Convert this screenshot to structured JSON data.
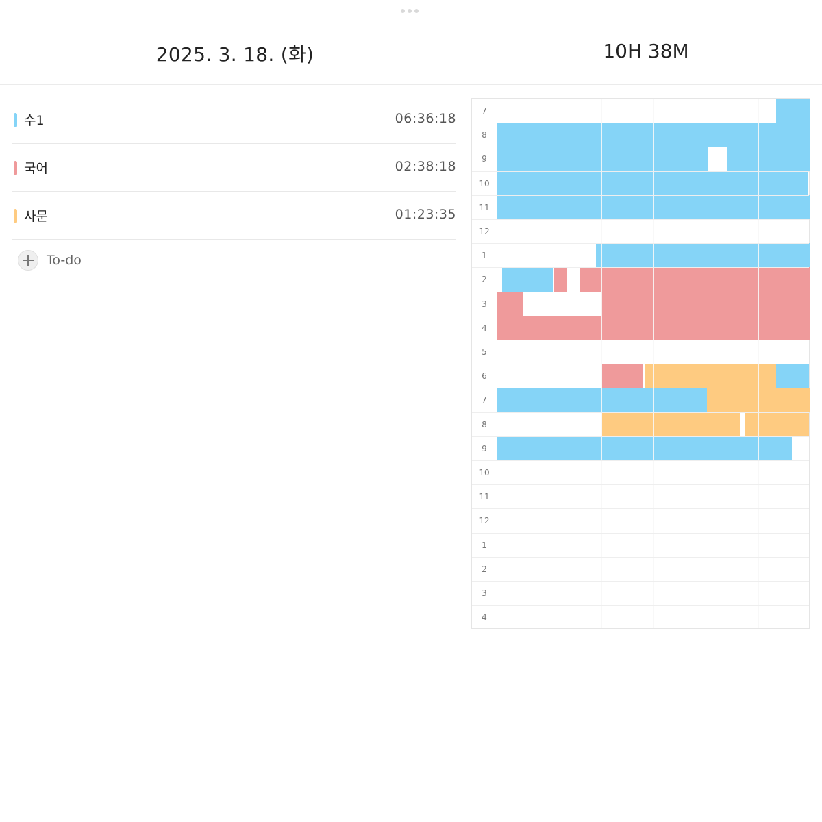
{
  "header": {
    "date": "2025. 3. 18. (화)",
    "total_time": "10H 38M"
  },
  "subjects": [
    {
      "name": "수1",
      "time": "06:36:18",
      "color": "#85d4f7"
    },
    {
      "name": "국어",
      "time": "02:38:18",
      "color": "#ef9a9b"
    },
    {
      "name": "사문",
      "time": "01:23:35",
      "color": "#fecb81"
    }
  ],
  "todo": {
    "label": "To-do"
  },
  "timetable": {
    "hours": [
      "7",
      "8",
      "9",
      "10",
      "11",
      "12",
      "1",
      "2",
      "3",
      "4",
      "5",
      "6",
      "7",
      "8",
      "9",
      "10",
      "11",
      "12",
      "1",
      "2",
      "3",
      "4"
    ],
    "minutes_per_cell": 10,
    "colors": {
      "s1": "#85d4f7",
      "kor": "#ef9a9b",
      "soc": "#fecb81"
    },
    "blocks": [
      {
        "subject": "s1",
        "row": 0,
        "start": 53.5,
        "end": 60
      },
      {
        "subject": "s1",
        "row": 1,
        "start": 0,
        "end": 60
      },
      {
        "subject": "s1",
        "row": 2,
        "start": 0,
        "end": 40.5
      },
      {
        "subject": "s1",
        "row": 2,
        "start": 44,
        "end": 60
      },
      {
        "subject": "s1",
        "row": 3,
        "start": 0,
        "end": 59.5
      },
      {
        "subject": "s1",
        "row": 4,
        "start": 0,
        "end": 60
      },
      {
        "subject": "s1",
        "row": 6,
        "start": 19,
        "end": 60
      },
      {
        "subject": "s1",
        "row": 7,
        "start": 1,
        "end": 10.8
      },
      {
        "subject": "kor",
        "row": 7,
        "start": 11,
        "end": 13.5
      },
      {
        "subject": "kor",
        "row": 7,
        "start": 16,
        "end": 60
      },
      {
        "subject": "kor",
        "row": 8,
        "start": 0,
        "end": 5
      },
      {
        "subject": "kor",
        "row": 8,
        "start": 20,
        "end": 60
      },
      {
        "subject": "kor",
        "row": 9,
        "start": 0,
        "end": 60
      },
      {
        "subject": "kor",
        "row": 11,
        "start": 20.2,
        "end": 28
      },
      {
        "subject": "soc",
        "row": 11,
        "start": 28.3,
        "end": 53.5
      },
      {
        "subject": "s1",
        "row": 11,
        "start": 53.5,
        "end": 59.7
      },
      {
        "subject": "s1",
        "row": 12,
        "start": 0,
        "end": 40.2
      },
      {
        "subject": "soc",
        "row": 12,
        "start": 40.2,
        "end": 60
      },
      {
        "subject": "soc",
        "row": 13,
        "start": 20.2,
        "end": 46.5
      },
      {
        "subject": "soc",
        "row": 13,
        "start": 47.5,
        "end": 59.8
      },
      {
        "subject": "s1",
        "row": 14,
        "start": 0,
        "end": 56.5
      }
    ]
  }
}
